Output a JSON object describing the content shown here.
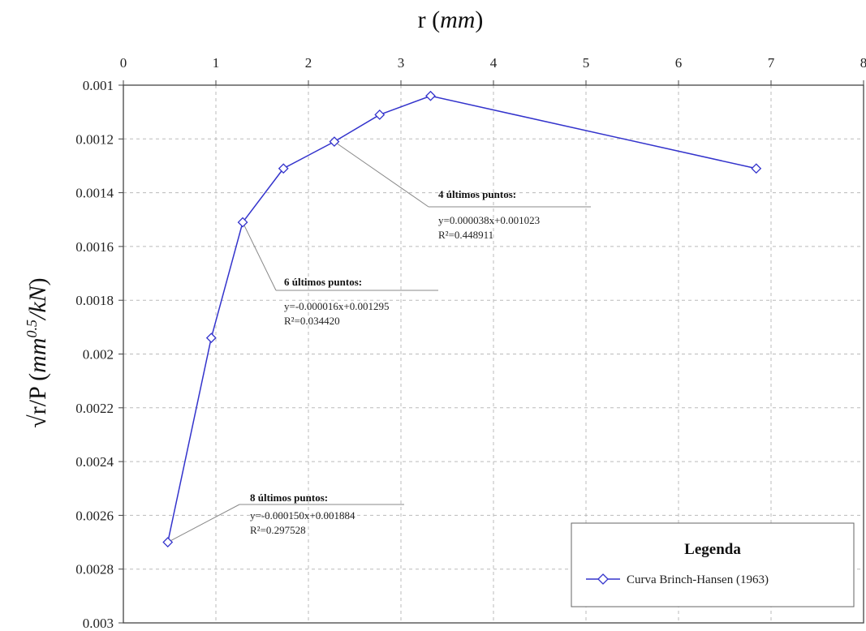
{
  "chart_data": {
    "type": "line",
    "xlabel": {
      "main": "r ",
      "unit": "mm"
    },
    "ylabel": {
      "main": "√r/P ",
      "unit": "mm",
      "unit_sup": "0.5",
      "unit_tail": "/kN"
    },
    "xlim": [
      0,
      8
    ],
    "ylim": [
      0.001,
      0.003
    ],
    "y_inverted": true,
    "x_axis_position": "top",
    "grid": true,
    "x_ticks": [
      "0",
      "1",
      "2",
      "3",
      "4",
      "5",
      "6",
      "7",
      "8"
    ],
    "y_ticks": [
      "0.001",
      "0.0012",
      "0.0014",
      "0.0016",
      "0.0018",
      "0.002",
      "0.0022",
      "0.0024",
      "0.0026",
      "0.0028",
      "0.003"
    ],
    "series": [
      {
        "name": "Curva Brinch-Hansen (1963)",
        "color": "#3333cc",
        "marker": "diamond",
        "x": [
          0.48,
          0.95,
          1.29,
          1.73,
          2.28,
          2.77,
          3.32,
          6.84
        ],
        "y": [
          0.0027,
          0.00194,
          0.00151,
          0.00131,
          0.00121,
          0.00111,
          0.00104,
          0.00131
        ]
      }
    ],
    "annotations": [
      {
        "title": "8 últimos puntos:",
        "line1": "y=-0.000150x+0.001884",
        "line2": "R²=0.297528",
        "point_index": 0
      },
      {
        "title": "6 últimos puntos:",
        "line1": "y=-0.000016x+0.001295",
        "line2": "R²=0.034420",
        "point_index": 2
      },
      {
        "title": "4 últimos puntos:",
        "line1": "y=0.000038x+0.001023",
        "line2": "R²=0.448911",
        "point_index": 4
      }
    ],
    "legend": {
      "title": "Legenda",
      "position": "bottom-right"
    }
  }
}
